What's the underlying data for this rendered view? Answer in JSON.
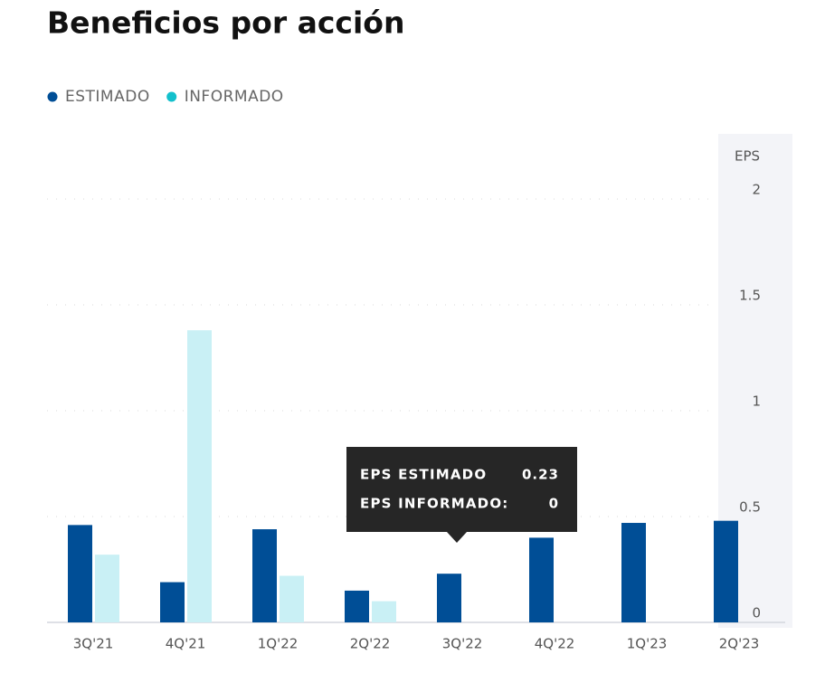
{
  "chart_data": {
    "type": "bar",
    "title": "Beneficios por acción",
    "y_label": "EPS",
    "categories": [
      "3Q'21",
      "4Q'21",
      "1Q'22",
      "2Q'22",
      "3Q'22",
      "4Q'22",
      "1Q'23",
      "2Q'23"
    ],
    "series": [
      {
        "name": "ESTIMADO",
        "color": "#004e96",
        "legend_color": "#004e96",
        "values": [
          0.46,
          0.19,
          0.44,
          0.15,
          0.23,
          0.4,
          0.47,
          0.48
        ]
      },
      {
        "name": "INFORMADO",
        "color": "#c9f0f5",
        "legend_color": "#13c0cc",
        "values": [
          0.32,
          1.38,
          0.22,
          0.1,
          0,
          null,
          null,
          null
        ]
      }
    ],
    "ylim": [
      0,
      2
    ],
    "yticks": [
      0,
      0.5,
      1,
      1.5,
      2
    ],
    "grid": true,
    "tooltip": {
      "category_index": 4,
      "labels": [
        "EPS ESTIMADO",
        "EPS INFORMADO:"
      ]
    }
  }
}
